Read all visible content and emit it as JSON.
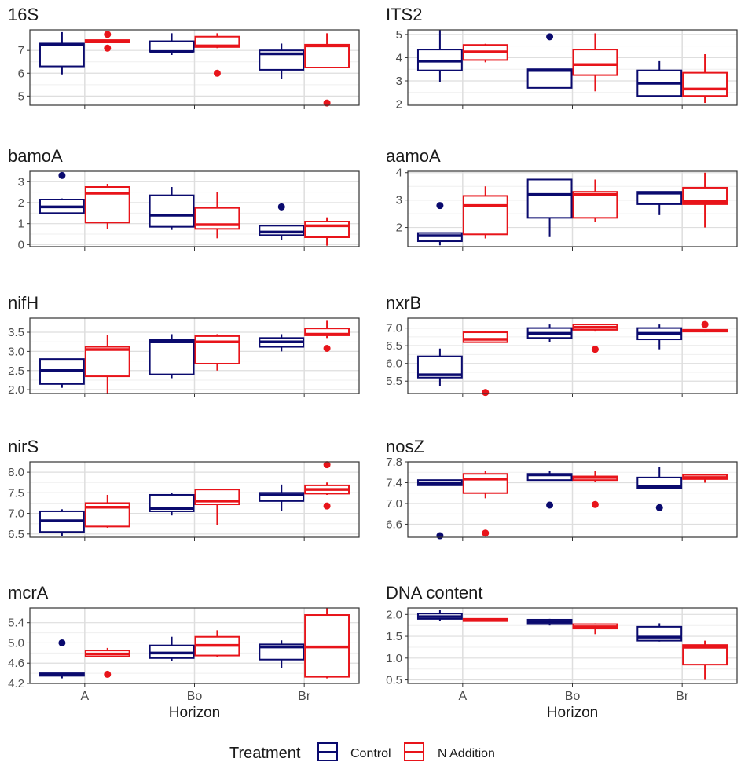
{
  "colors": {
    "control": "#0a0a6e",
    "n_addition": "#e8141a",
    "grid_major": "#dedede",
    "grid_minor": "#efefef",
    "panel_border": "#333333",
    "tick_text": "#4d4d4d"
  },
  "legend": {
    "title": "Treatment",
    "items": [
      {
        "key": "control",
        "label": "Control"
      },
      {
        "key": "n_addition",
        "label": "N Addition"
      }
    ]
  },
  "chart_data": {
    "type": "boxplot",
    "x_categories": [
      "A",
      "Bo",
      "Br"
    ],
    "xlabel": "Horizon",
    "series_order": [
      "control",
      "n_addition"
    ],
    "panels": [
      {
        "title": "16S",
        "ylim": [
          4.6,
          7.9
        ],
        "yticks": [
          5,
          6,
          7
        ],
        "tick_labels": [
          "5",
          "6",
          "7"
        ],
        "boxes": {
          "control": [
            {
              "min": 5.95,
              "q1": 6.3,
              "median": 7.25,
              "q3": 7.3,
              "max": 7.8,
              "outliers": []
            },
            {
              "min": 6.8,
              "q1": 6.95,
              "median": 6.95,
              "q3": 7.4,
              "max": 7.75,
              "outliers": []
            },
            {
              "min": 5.75,
              "q1": 6.15,
              "median": 6.85,
              "q3": 7.0,
              "max": 7.3,
              "outliers": []
            }
          ],
          "n_addition": [
            {
              "min": 7.35,
              "q1": 7.35,
              "median": 7.4,
              "q3": 7.45,
              "max": 7.45,
              "outliers": [
                7.7,
                7.1
              ]
            },
            {
              "min": 7.1,
              "q1": 7.15,
              "median": 7.2,
              "q3": 7.6,
              "max": 7.75,
              "outliers": [
                6.0
              ]
            },
            {
              "min": 6.25,
              "q1": 6.25,
              "median": 7.2,
              "q3": 7.25,
              "max": 7.75,
              "outliers": [
                4.7
              ]
            }
          ]
        }
      },
      {
        "title": "ITS2",
        "ylim": [
          1.95,
          5.2
        ],
        "yticks": [
          2,
          3,
          4,
          5
        ],
        "tick_labels": [
          "2",
          "3",
          "4",
          "5"
        ],
        "boxes": {
          "control": [
            {
              "min": 2.95,
              "q1": 3.45,
              "median": 3.85,
              "q3": 4.35,
              "max": 5.2,
              "outliers": []
            },
            {
              "min": 2.7,
              "q1": 2.7,
              "median": 3.45,
              "q3": 3.5,
              "max": 3.5,
              "outliers": [
                4.9
              ]
            },
            {
              "min": 2.35,
              "q1": 2.35,
              "median": 2.9,
              "q3": 3.45,
              "max": 3.85,
              "outliers": []
            }
          ],
          "n_addition": [
            {
              "min": 3.8,
              "q1": 3.9,
              "median": 4.25,
              "q3": 4.55,
              "max": 4.6,
              "outliers": []
            },
            {
              "min": 2.55,
              "q1": 3.25,
              "median": 3.7,
              "q3": 4.35,
              "max": 5.05,
              "outliers": []
            },
            {
              "min": 2.05,
              "q1": 2.35,
              "median": 2.65,
              "q3": 3.35,
              "max": 4.15,
              "outliers": []
            }
          ]
        }
      },
      {
        "title": "bamoA",
        "ylim": [
          -0.1,
          3.5
        ],
        "yticks": [
          0,
          1,
          2,
          3
        ],
        "tick_labels": [
          "0",
          "1",
          "2",
          "3"
        ],
        "boxes": {
          "control": [
            {
              "min": 1.45,
              "q1": 1.5,
              "median": 1.8,
              "q3": 2.15,
              "max": 2.2,
              "outliers": [
                3.3
              ]
            },
            {
              "min": 0.7,
              "q1": 0.85,
              "median": 1.4,
              "q3": 2.35,
              "max": 2.75,
              "outliers": []
            },
            {
              "min": 0.2,
              "q1": 0.45,
              "median": 0.6,
              "q3": 0.9,
              "max": 0.95,
              "outliers": [
                1.8
              ]
            }
          ],
          "n_addition": [
            {
              "min": 0.75,
              "q1": 1.05,
              "median": 2.45,
              "q3": 2.75,
              "max": 2.9,
              "outliers": []
            },
            {
              "min": 0.3,
              "q1": 0.75,
              "median": 0.95,
              "q3": 1.75,
              "max": 2.5,
              "outliers": []
            },
            {
              "min": -0.05,
              "q1": 0.35,
              "median": 0.9,
              "q3": 1.1,
              "max": 1.3,
              "outliers": []
            }
          ]
        }
      },
      {
        "title": "aamoA",
        "ylim": [
          1.3,
          4.05
        ],
        "yticks": [
          2,
          3,
          4
        ],
        "tick_labels": [
          "2",
          "3",
          "4"
        ],
        "boxes": {
          "control": [
            {
              "min": 1.35,
              "q1": 1.5,
              "median": 1.7,
              "q3": 1.8,
              "max": 1.8,
              "outliers": [
                2.8
              ]
            },
            {
              "min": 1.65,
              "q1": 2.35,
              "median": 3.2,
              "q3": 3.75,
              "max": 3.75,
              "outliers": []
            },
            {
              "min": 2.45,
              "q1": 2.85,
              "median": 3.25,
              "q3": 3.3,
              "max": 3.3,
              "outliers": []
            }
          ],
          "n_addition": [
            {
              "min": 1.6,
              "q1": 1.75,
              "median": 2.8,
              "q3": 3.15,
              "max": 3.5,
              "outliers": []
            },
            {
              "min": 2.2,
              "q1": 2.35,
              "median": 3.2,
              "q3": 3.3,
              "max": 3.75,
              "outliers": []
            },
            {
              "min": 2.0,
              "q1": 2.85,
              "median": 2.95,
              "q3": 3.45,
              "max": 4.0,
              "outliers": []
            }
          ]
        }
      },
      {
        "title": "nifH",
        "ylim": [
          1.9,
          3.87
        ],
        "yticks": [
          2.0,
          2.5,
          3.0,
          3.5
        ],
        "tick_labels": [
          "2.0",
          "2.5",
          "3.0",
          "3.5"
        ],
        "boxes": {
          "control": [
            {
              "min": 2.05,
              "q1": 2.15,
              "median": 2.5,
              "q3": 2.8,
              "max": 2.8,
              "outliers": []
            },
            {
              "min": 2.3,
              "q1": 2.4,
              "median": 3.25,
              "q3": 3.3,
              "max": 3.45,
              "outliers": []
            },
            {
              "min": 3.0,
              "q1": 3.12,
              "median": 3.25,
              "q3": 3.35,
              "max": 3.45,
              "outliers": []
            }
          ],
          "n_addition": [
            {
              "min": 1.9,
              "q1": 2.35,
              "median": 3.05,
              "q3": 3.12,
              "max": 3.42,
              "outliers": []
            },
            {
              "min": 2.5,
              "q1": 2.68,
              "median": 3.25,
              "q3": 3.4,
              "max": 3.45,
              "outliers": []
            },
            {
              "min": 3.35,
              "q1": 3.42,
              "median": 3.45,
              "q3": 3.6,
              "max": 3.8,
              "outliers": [
                3.08
              ]
            }
          ]
        }
      },
      {
        "title": "nxrB",
        "ylim": [
          5.15,
          7.28
        ],
        "yticks": [
          5.5,
          6.0,
          6.5,
          7.0
        ],
        "tick_labels": [
          "5.5",
          "6.0",
          "6.5",
          "7.0"
        ],
        "boxes": {
          "control": [
            {
              "min": 5.35,
              "q1": 5.6,
              "median": 5.68,
              "q3": 6.2,
              "max": 6.42,
              "outliers": []
            },
            {
              "min": 6.6,
              "q1": 6.72,
              "median": 6.85,
              "q3": 7.0,
              "max": 7.1,
              "outliers": []
            },
            {
              "min": 6.4,
              "q1": 6.68,
              "median": 6.85,
              "q3": 7.0,
              "max": 7.1,
              "outliers": []
            }
          ],
          "n_addition": [
            {
              "min": 6.6,
              "q1": 6.6,
              "median": 6.68,
              "q3": 6.88,
              "max": 6.9,
              "outliers": [
                5.18
              ]
            },
            {
              "min": 6.9,
              "q1": 6.95,
              "median": 7.02,
              "q3": 7.1,
              "max": 7.12,
              "outliers": [
                6.4
              ]
            },
            {
              "min": 6.88,
              "q1": 6.9,
              "median": 6.92,
              "q3": 6.95,
              "max": 6.95,
              "outliers": [
                7.1
              ]
            }
          ]
        }
      },
      {
        "title": "nirS",
        "ylim": [
          6.42,
          8.25
        ],
        "yticks": [
          6.5,
          7.0,
          7.5,
          8.0
        ],
        "tick_labels": [
          "6.5",
          "7.0",
          "7.5",
          "8.0"
        ],
        "boxes": {
          "control": [
            {
              "min": 6.45,
              "q1": 6.55,
              "median": 6.82,
              "q3": 7.05,
              "max": 7.1,
              "outliers": []
            },
            {
              "min": 6.95,
              "q1": 7.05,
              "median": 7.12,
              "q3": 7.45,
              "max": 7.5,
              "outliers": []
            },
            {
              "min": 7.05,
              "q1": 7.3,
              "median": 7.45,
              "q3": 7.5,
              "max": 7.7,
              "outliers": []
            }
          ],
          "n_addition": [
            {
              "min": 6.65,
              "q1": 6.68,
              "median": 7.15,
              "q3": 7.25,
              "max": 7.45,
              "outliers": []
            },
            {
              "min": 6.72,
              "q1": 7.22,
              "median": 7.3,
              "q3": 7.58,
              "max": 7.6,
              "outliers": []
            },
            {
              "min": 7.45,
              "q1": 7.48,
              "median": 7.58,
              "q3": 7.68,
              "max": 7.75,
              "outliers": [
                8.18,
                7.18
              ]
            }
          ]
        }
      },
      {
        "title": "nosZ",
        "ylim": [
          6.35,
          7.8
        ],
        "yticks": [
          6.6,
          7.0,
          7.4,
          7.8
        ],
        "tick_labels": [
          "6.6",
          "7.0",
          "7.4",
          "7.8"
        ],
        "boxes": {
          "control": [
            {
              "min": 7.35,
              "q1": 7.35,
              "median": 7.38,
              "q3": 7.45,
              "max": 7.45,
              "outliers": [
                6.38
              ]
            },
            {
              "min": 7.45,
              "q1": 7.45,
              "median": 7.55,
              "q3": 7.57,
              "max": 7.63,
              "outliers": [
                6.97
              ]
            },
            {
              "min": 7.3,
              "q1": 7.3,
              "median": 7.33,
              "q3": 7.5,
              "max": 7.7,
              "outliers": [
                6.92
              ]
            }
          ],
          "n_addition": [
            {
              "min": 7.1,
              "q1": 7.2,
              "median": 7.47,
              "q3": 7.57,
              "max": 7.63,
              "outliers": [
                6.43
              ]
            },
            {
              "min": 7.42,
              "q1": 7.45,
              "median": 7.5,
              "q3": 7.52,
              "max": 7.62,
              "outliers": [
                6.98
              ]
            },
            {
              "min": 7.4,
              "q1": 7.47,
              "median": 7.5,
              "q3": 7.55,
              "max": 7.57,
              "outliers": []
            }
          ]
        }
      },
      {
        "title": "mcrA",
        "ylim": [
          4.2,
          5.69
        ],
        "yticks": [
          4.2,
          4.6,
          5.0,
          5.4
        ],
        "tick_labels": [
          "4.2",
          "4.6",
          "5.0",
          "5.4"
        ],
        "boxes": {
          "control": [
            {
              "min": 4.3,
              "q1": 4.35,
              "median": 4.37,
              "q3": 4.4,
              "max": 4.4,
              "outliers": [
                5.0
              ]
            },
            {
              "min": 4.65,
              "q1": 4.7,
              "median": 4.8,
              "q3": 4.95,
              "max": 5.12,
              "outliers": []
            },
            {
              "min": 4.5,
              "q1": 4.67,
              "median": 4.92,
              "q3": 4.97,
              "max": 5.05,
              "outliers": []
            }
          ],
          "n_addition": [
            {
              "min": 4.72,
              "q1": 4.73,
              "median": 4.78,
              "q3": 4.85,
              "max": 4.9,
              "outliers": [
                4.38
              ]
            },
            {
              "min": 4.72,
              "q1": 4.75,
              "median": 4.95,
              "q3": 5.12,
              "max": 5.25,
              "outliers": []
            },
            {
              "min": 4.3,
              "q1": 4.33,
              "median": 4.92,
              "q3": 5.55,
              "max": 5.69,
              "outliers": []
            }
          ]
        }
      },
      {
        "title": "DNA content",
        "ylim": [
          0.42,
          2.15
        ],
        "yticks": [
          0.5,
          1.0,
          1.5,
          2.0
        ],
        "tick_labels": [
          "0.5",
          "1.0",
          "1.5",
          "2.0"
        ],
        "boxes": {
          "control": [
            {
              "min": 1.85,
              "q1": 1.9,
              "median": 1.95,
              "q3": 2.02,
              "max": 2.1,
              "outliers": []
            },
            {
              "min": 1.75,
              "q1": 1.78,
              "median": 1.83,
              "q3": 1.88,
              "max": 1.9,
              "outliers": []
            },
            {
              "min": 1.38,
              "q1": 1.4,
              "median": 1.48,
              "q3": 1.72,
              "max": 1.8,
              "outliers": []
            }
          ],
          "n_addition": [
            {
              "min": 1.85,
              "q1": 1.85,
              "median": 1.87,
              "q3": 1.9,
              "max": 1.9,
              "outliers": []
            },
            {
              "min": 1.55,
              "q1": 1.68,
              "median": 1.72,
              "q3": 1.78,
              "max": 1.8,
              "outliers": []
            },
            {
              "min": 0.5,
              "q1": 0.85,
              "median": 1.25,
              "q3": 1.3,
              "max": 1.4,
              "outliers": []
            }
          ]
        }
      }
    ]
  }
}
